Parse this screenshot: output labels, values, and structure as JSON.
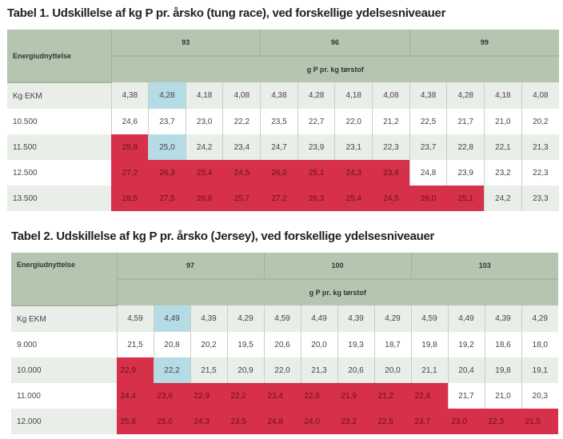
{
  "table1": {
    "title": "Tabel 1. Udskillelse af kg P pr. årsko (tung race), ved forskellige ydelsesniveauer",
    "row_header": "Energiudnyttelse",
    "groups": [
      "93",
      "96",
      "99"
    ],
    "subheader": "g P pr. kg tørstof",
    "rows": [
      {
        "label": "Kg EKM",
        "cells": [
          "4,38",
          "4,28",
          "4,18",
          "4,08",
          "4,38",
          "4,28",
          "4,18",
          "4,08",
          "4,38",
          "4,28",
          "4,18",
          "4,08"
        ],
        "marks": [
          "",
          "b",
          "",
          "",
          "",
          "",
          "",
          "",
          "",
          "",
          "",
          ""
        ]
      },
      {
        "label": "10.500",
        "cells": [
          "24,6",
          "23,7",
          "23,0",
          "22,2",
          "23,5",
          "22,7",
          "22,0",
          "21,2",
          "22,5",
          "21,7",
          "21,0",
          "20,2"
        ],
        "marks": [
          "",
          "",
          "",
          "",
          "",
          "",
          "",
          "",
          "",
          "",
          "",
          ""
        ]
      },
      {
        "label": "11.500",
        "cells": [
          "25,9",
          "25,0",
          "24,2",
          "23,4",
          "24,7",
          "23,9",
          "23,1",
          "22,3",
          "23,7",
          "22,8",
          "22,1",
          "21,3"
        ],
        "marks": [
          "r",
          "b",
          "",
          "",
          "",
          "",
          "",
          "",
          "",
          "",
          "",
          ""
        ]
      },
      {
        "label": "12.500",
        "cells": [
          "27,2",
          "26,3",
          "25,4",
          "24,5",
          "26,0",
          "25,1",
          "24,3",
          "23,4",
          "24,8",
          "23,9",
          "23,2",
          "22,3"
        ],
        "marks": [
          "r",
          "r",
          "r",
          "r",
          "r",
          "r",
          "r",
          "r",
          "",
          "",
          "",
          ""
        ]
      },
      {
        "label": "13.500",
        "cells": [
          "28,5",
          "27,5",
          "26,6",
          "25,7",
          "27,2",
          "26,3",
          "25,4",
          "24,5",
          "26,0",
          "25,1",
          "24,2",
          "23,3"
        ],
        "marks": [
          "r",
          "r",
          "r",
          "r",
          "r",
          "r",
          "r",
          "r",
          "r",
          "r",
          "",
          ""
        ]
      }
    ]
  },
  "table2": {
    "title": "Tabel 2. Udskillelse af kg P pr. årsko (Jersey), ved forskellige ydelsesniveauer",
    "row_header": "Energiudnyttelse",
    "groups": [
      "97",
      "100",
      "103"
    ],
    "subheader": "g P pr. kg tørstof",
    "rows": [
      {
        "label": "Kg EKM",
        "cells": [
          "4,59",
          "4,49",
          "4,39",
          "4,29",
          "4,59",
          "4,49",
          "4,39",
          "4,29",
          "4,59",
          "4,49",
          "4,39",
          "4,29"
        ],
        "marks": [
          "",
          "b",
          "",
          "",
          "",
          "",
          "",
          "",
          "",
          "",
          "",
          ""
        ]
      },
      {
        "label": "9.000",
        "cells": [
          "21,5",
          "20,8",
          "20,2",
          "19,5",
          "20,6",
          "20,0",
          "19,3",
          "18,7",
          "19,8",
          "19,2",
          "18,6",
          "18,0"
        ],
        "marks": [
          "",
          "",
          "",
          "",
          "",
          "",
          "",
          "",
          "",
          "",
          "",
          ""
        ]
      },
      {
        "label": "10.000",
        "cells": [
          "22,9",
          "22,2",
          "21,5",
          "20,9",
          "22,0",
          "21,3",
          "20,6",
          "20,0",
          "21,1",
          "20,4",
          "19,8",
          "19,1"
        ],
        "marks": [
          "r",
          "b",
          "",
          "",
          "",
          "",
          "",
          "",
          "",
          "",
          "",
          ""
        ]
      },
      {
        "label": "11.000",
        "cells": [
          "24,4",
          "23,6",
          "22,9",
          "22,2",
          "23,4",
          "22,6",
          "21,9",
          "21,2",
          "22,4",
          "21,7",
          "21,0",
          "20,3"
        ],
        "marks": [
          "r",
          "r",
          "r",
          "r",
          "r",
          "r",
          "r",
          "r",
          "r",
          "",
          "",
          ""
        ]
      },
      {
        "label": "12.000",
        "cells": [
          "25,8",
          "25,0",
          "24,3",
          "23,5",
          "24,8",
          "24,0",
          "23,2",
          "22,5",
          "23,7",
          "23,0",
          "22,3",
          "21,5"
        ],
        "marks": [
          "r",
          "r",
          "r",
          "r",
          "r",
          "r",
          "r",
          "r",
          "r",
          "r",
          "r",
          "r"
        ]
      }
    ]
  },
  "colors": {
    "header": "#b5c6b0",
    "alt_row": "#e9eee8",
    "red": "#d6304a",
    "blue": "#b5dbe5"
  }
}
